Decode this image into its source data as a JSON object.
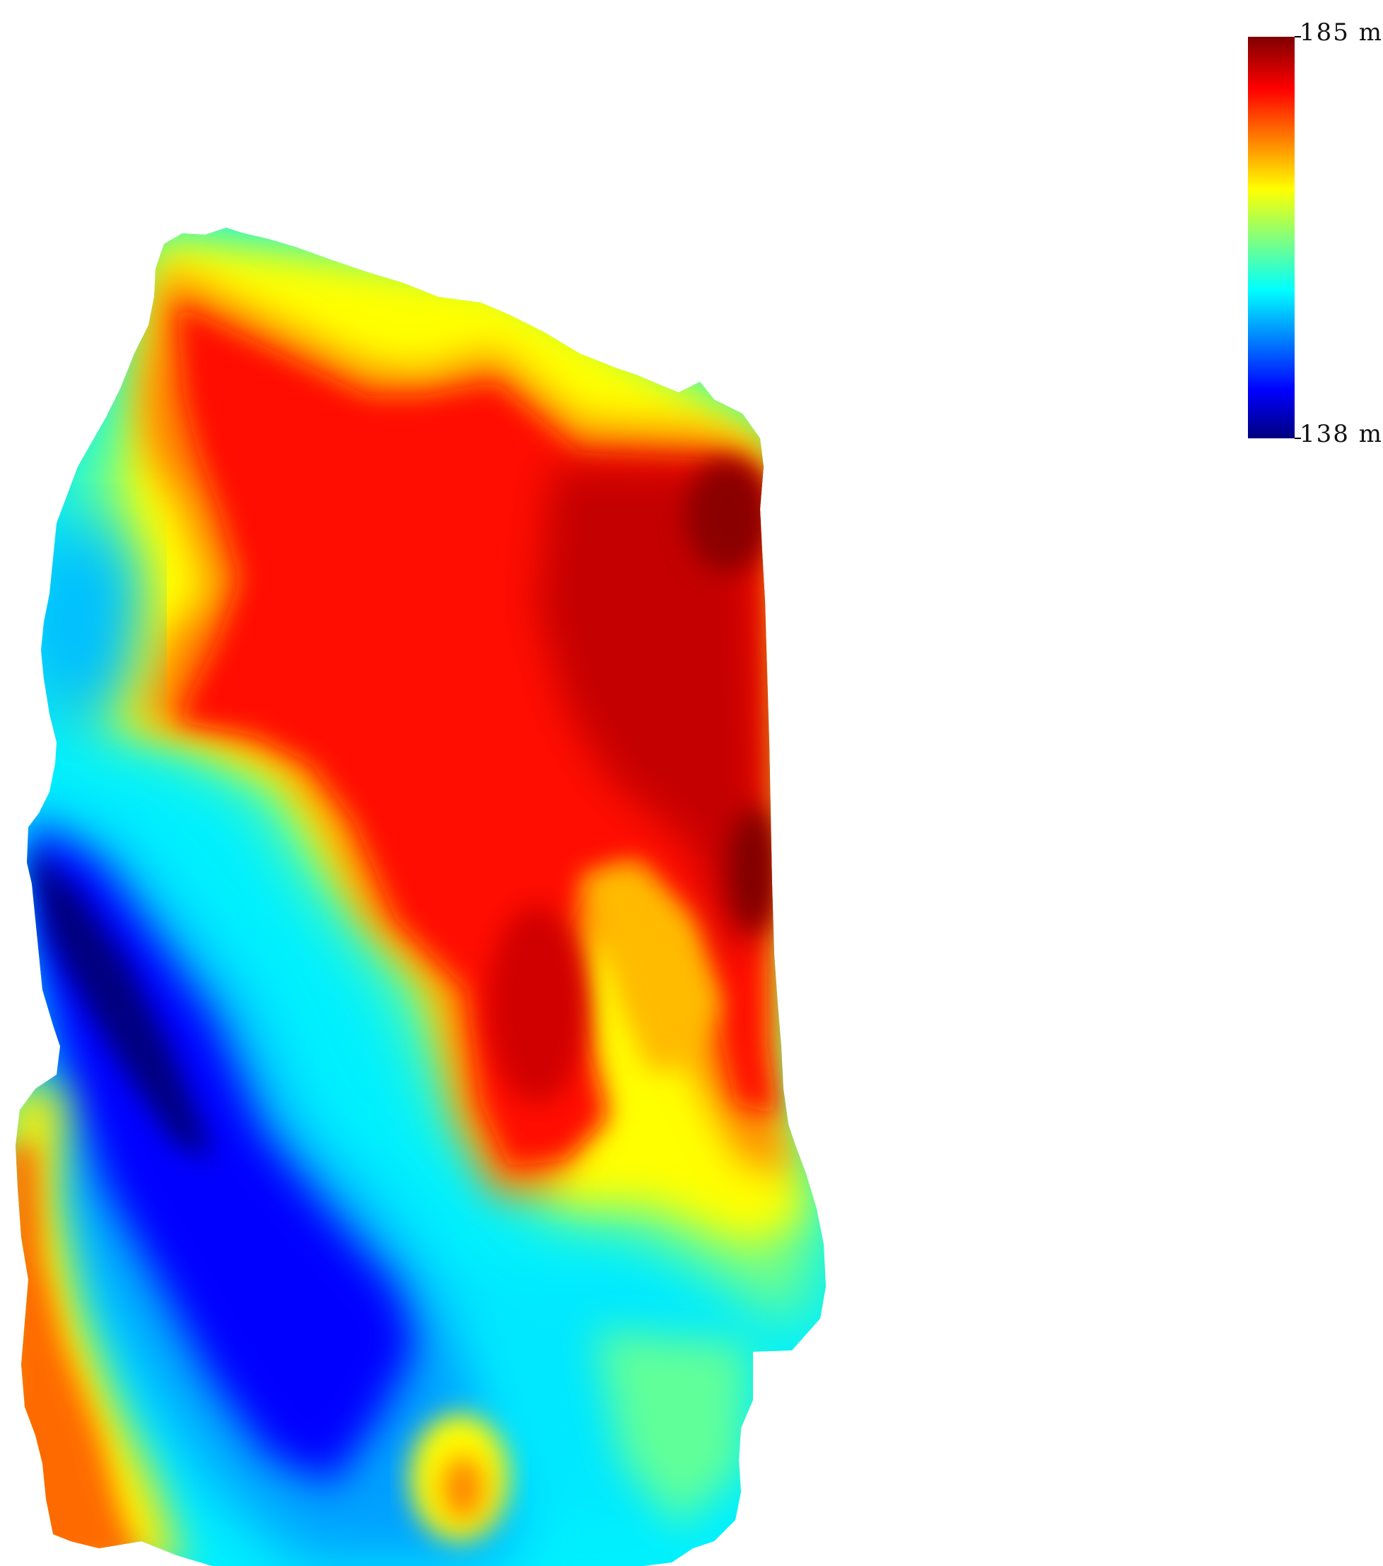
{
  "legend": {
    "max_label": "185 m",
    "min_label": "138 m",
    "max_value": 185,
    "min_value": 138,
    "colormap": "jet",
    "stops": [
      "#00007f",
      "#0000ff",
      "#00ffff",
      "#ffff00",
      "#ff0000",
      "#7f0000"
    ]
  },
  "map": {
    "type": "elevation-raster",
    "background": "#ffffff"
  }
}
